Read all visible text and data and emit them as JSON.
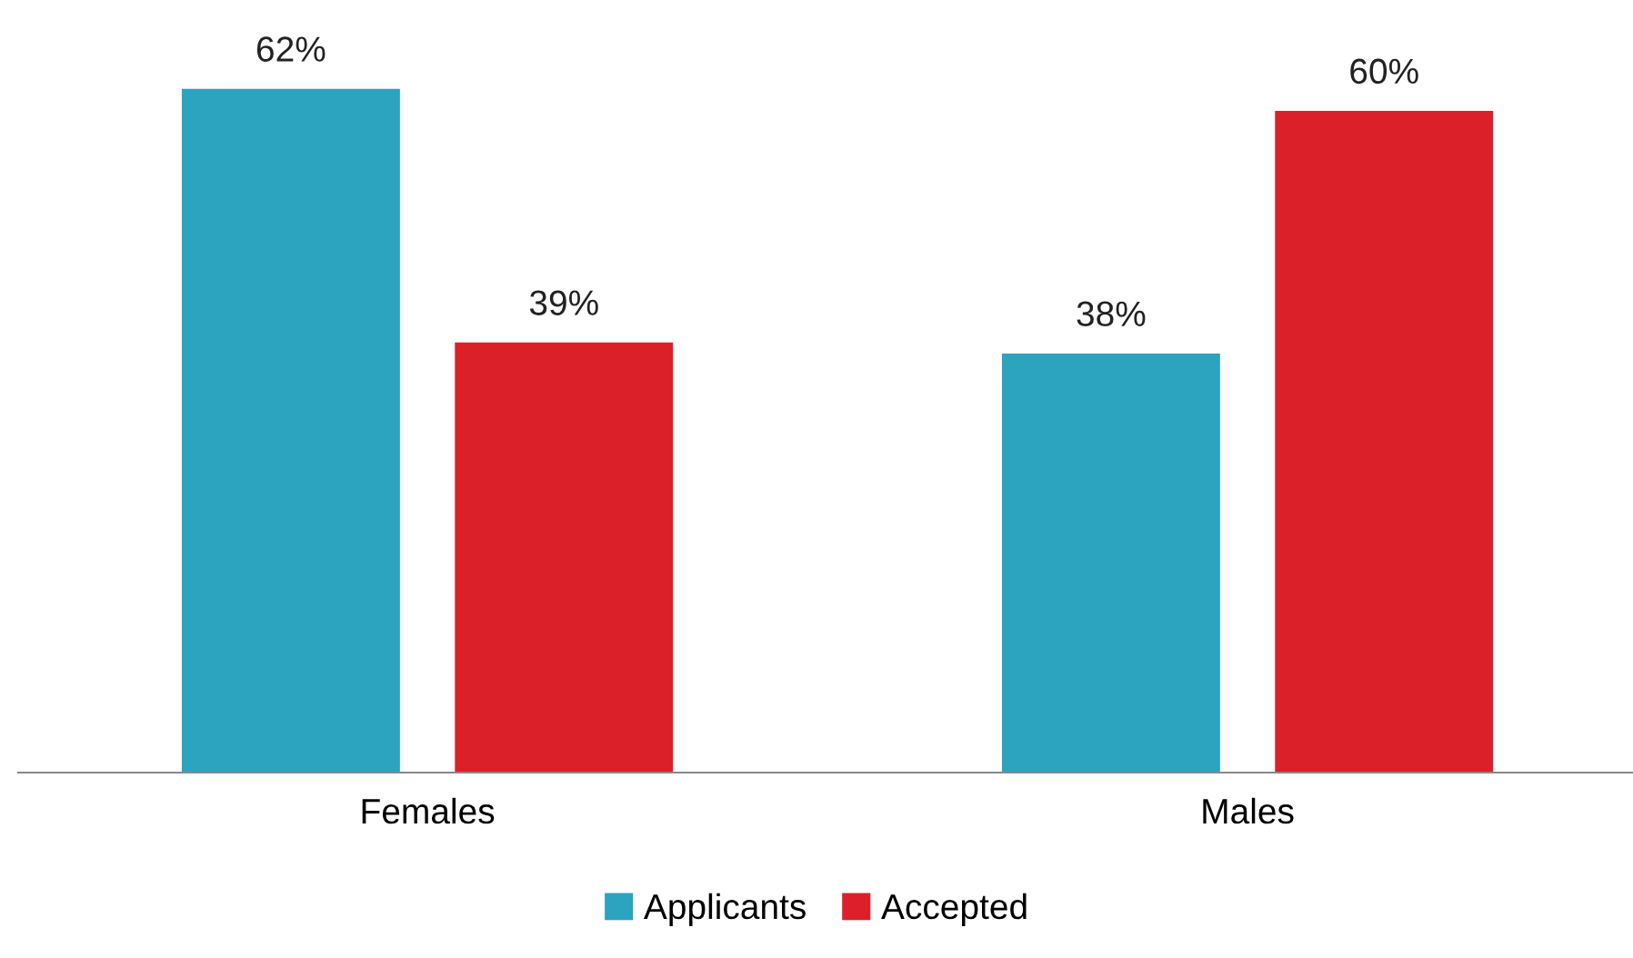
{
  "chart_data": {
    "type": "bar",
    "categories": [
      "Females",
      "Males"
    ],
    "series": [
      {
        "name": "Applicants",
        "color": "#2ca3bf",
        "values": [
          62,
          38
        ],
        "value_labels": [
          "62%",
          "38%"
        ]
      },
      {
        "name": "Accepted",
        "color": "#dc2029",
        "values": [
          39,
          60
        ],
        "value_labels": [
          "39%",
          "60%"
        ]
      }
    ],
    "legend": "bottom",
    "grid": false
  }
}
